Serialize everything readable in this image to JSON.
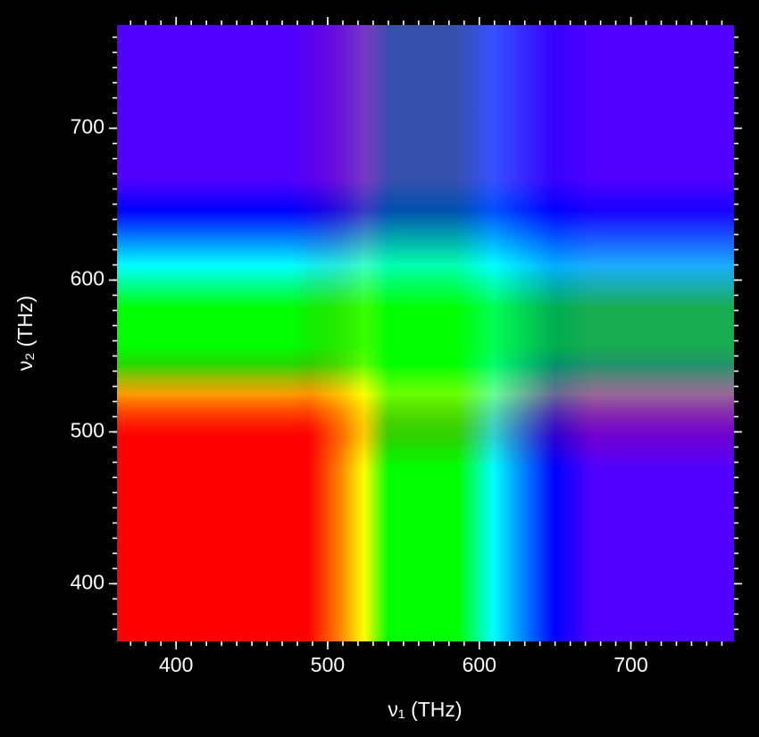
{
  "chart_data": {
    "type": "heatmap",
    "xlabel": "ν₁ (THz)",
    "ylabel": "ν₂ (THz)",
    "xlim": [
      361,
      768
    ],
    "ylim": [
      362,
      768
    ],
    "xticks": [
      400,
      500,
      600,
      700
    ],
    "yticks": [
      400,
      500,
      600,
      700
    ]
  }
}
